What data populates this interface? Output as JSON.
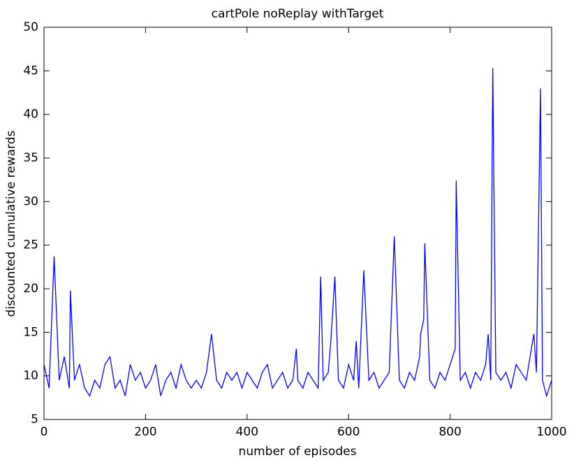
{
  "chart_data": {
    "type": "line",
    "title": "cartPole noReplay withTarget",
    "xlabel": "number of episodes",
    "ylabel": "discounted cumulative rewards",
    "x": [
      0,
      10,
      20,
      30,
      40,
      50,
      52,
      60,
      70,
      80,
      90,
      100,
      110,
      120,
      130,
      140,
      150,
      160,
      170,
      180,
      190,
      200,
      210,
      220,
      230,
      240,
      250,
      260,
      270,
      280,
      290,
      300,
      310,
      320,
      330,
      340,
      350,
      360,
      370,
      380,
      390,
      400,
      410,
      420,
      430,
      440,
      450,
      460,
      470,
      480,
      490,
      497,
      500,
      510,
      520,
      530,
      540,
      545,
      550,
      560,
      565,
      573,
      580,
      590,
      600,
      610,
      615,
      620,
      630,
      640,
      650,
      660,
      670,
      680,
      690,
      700,
      710,
      720,
      730,
      740,
      742,
      748,
      750,
      760,
      770,
      780,
      790,
      800,
      810,
      812,
      820,
      830,
      840,
      850,
      860,
      870,
      875,
      880,
      884,
      890,
      900,
      910,
      920,
      930,
      940,
      950,
      960,
      965,
      970,
      978,
      982,
      990,
      1000
    ],
    "series": [
      {
        "name": "rewards",
        "color": "#0000ff",
        "values": [
          11.3,
          8.6,
          23.7,
          9.5,
          12.2,
          8.6,
          19.8,
          9.5,
          11.3,
          8.6,
          7.7,
          9.5,
          8.6,
          11.3,
          12.2,
          8.6,
          9.5,
          7.7,
          11.3,
          9.5,
          10.4,
          8.6,
          9.5,
          11.3,
          7.7,
          9.5,
          10.4,
          8.6,
          11.3,
          9.5,
          8.6,
          9.5,
          8.6,
          10.4,
          14.8,
          9.5,
          8.6,
          10.4,
          9.5,
          10.4,
          8.6,
          10.4,
          9.5,
          8.6,
          10.4,
          11.3,
          8.6,
          9.5,
          10.4,
          8.6,
          9.5,
          13.1,
          9.5,
          8.6,
          10.4,
          9.5,
          8.6,
          21.4,
          9.5,
          10.4,
          14,
          21.4,
          9.5,
          8.6,
          11.3,
          9.5,
          14,
          8.6,
          22.1,
          9.5,
          10.4,
          8.6,
          9.5,
          10.4,
          26,
          9.5,
          8.6,
          10.4,
          9.5,
          12.2,
          14.8,
          16.5,
          25.2,
          9.5,
          8.6,
          10.4,
          9.5,
          11.3,
          13.1,
          32.4,
          9.5,
          10.4,
          8.6,
          10.4,
          9.5,
          11.3,
          14.8,
          9.5,
          45.3,
          10.4,
          9.5,
          10.4,
          8.6,
          11.3,
          10.4,
          9.5,
          13.1,
          14.8,
          10.4,
          43,
          9.5,
          7.7,
          9.5
        ]
      }
    ],
    "xlim": [
      0,
      1000
    ],
    "xticks": [
      0,
      200,
      400,
      600,
      800,
      1000
    ],
    "ylim": [
      5,
      50
    ],
    "yticks": [
      5,
      10,
      15,
      20,
      25,
      30,
      35,
      40,
      45,
      50
    ],
    "grid": false
  }
}
